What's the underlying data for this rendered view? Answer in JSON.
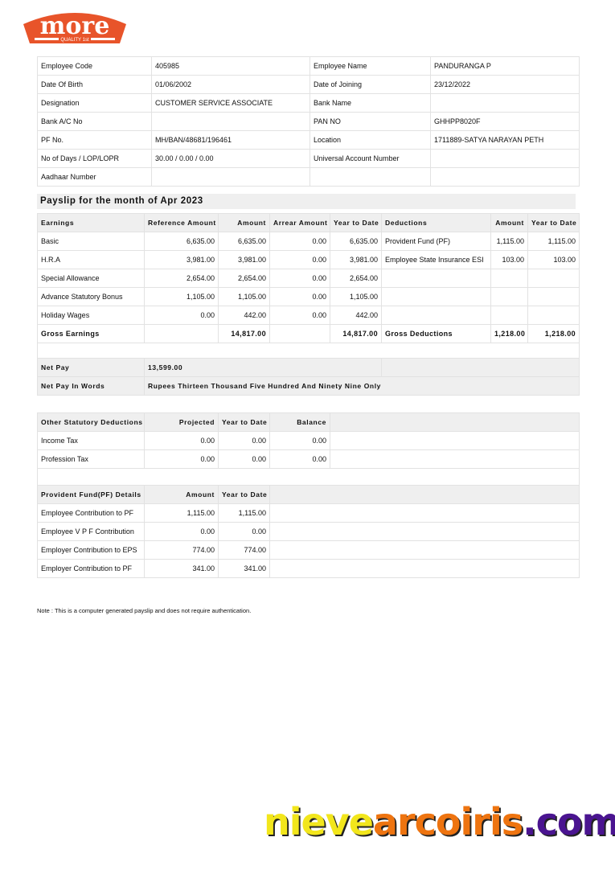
{
  "logo": {
    "text": "more",
    "tagline": "QUALITY 1st",
    "color": "#e8542a"
  },
  "info": [
    [
      "Employee Code",
      "405985",
      "Employee Name",
      "PANDURANGA P"
    ],
    [
      "Date Of Birth",
      "01/06/2002",
      "Date of Joining",
      "23/12/2022"
    ],
    [
      "Designation",
      "CUSTOMER SERVICE ASSOCIATE",
      "Bank Name",
      ""
    ],
    [
      "Bank A/C No",
      "",
      "PAN NO",
      "GHHPP8020F"
    ],
    [
      "PF No.",
      "MH/BAN/48681/196461",
      "Location",
      "1711889-SATYA NARAYAN PETH"
    ],
    [
      "No of Days / LOP/LOPR",
      "30.00 / 0.00 / 0.00",
      "Universal Account Number",
      ""
    ],
    [
      "Aadhaar Number",
      "",
      "",
      ""
    ]
  ],
  "payslip_title": "Payslip for the month of Apr 2023",
  "earnings": {
    "headers": [
      "Earnings",
      "Reference Amount",
      "Amount",
      "Arrear Amount",
      "Year to Date",
      "Deductions",
      "Amount",
      "Year to Date"
    ],
    "rows": [
      [
        "Basic",
        "6,635.00",
        "6,635.00",
        "0.00",
        "6,635.00",
        "Provident Fund (PF)",
        "1,115.00",
        "1,115.00"
      ],
      [
        "H.R.A",
        "3,981.00",
        "3,981.00",
        "0.00",
        "3,981.00",
        "Employee State Insurance ESI",
        "103.00",
        "103.00"
      ],
      [
        "Special Allowance",
        "2,654.00",
        "2,654.00",
        "0.00",
        "2,654.00",
        "",
        "",
        ""
      ],
      [
        "Advance Statutory Bonus",
        "1,105.00",
        "1,105.00",
        "0.00",
        "1,105.00",
        "",
        "",
        ""
      ],
      [
        "Holiday Wages",
        "0.00",
        "442.00",
        "0.00",
        "442.00",
        "",
        "",
        ""
      ]
    ],
    "totals": [
      "Gross Earnings",
      "",
      "14,817.00",
      "",
      "14,817.00",
      "Gross Deductions",
      "1,218.00",
      "1,218.00"
    ]
  },
  "net_pay": {
    "label": "Net Pay",
    "value": "13,599.00",
    "words_label": "Net Pay In Words",
    "words": "Rupees Thirteen Thousand Five Hundred And Ninety Nine Only"
  },
  "statutory": {
    "headers": [
      "Other Statutory Deductions",
      "Projected",
      "Year to Date",
      "Balance"
    ],
    "rows": [
      [
        "Income Tax",
        "0.00",
        "0.00",
        "0.00"
      ],
      [
        "Profession Tax",
        "0.00",
        "0.00",
        "0.00"
      ]
    ]
  },
  "pf": {
    "headers": [
      "Provident Fund(PF) Details",
      "Amount",
      "Year to Date"
    ],
    "rows": [
      [
        "Employee Contribution to PF",
        "1,115.00",
        "1,115.00"
      ],
      [
        "Employee V P F Contribution",
        "0.00",
        "0.00"
      ],
      [
        "Employer Contribution to EPS",
        "774.00",
        "774.00"
      ],
      [
        "Employer Contribution to PF",
        "341.00",
        "341.00"
      ]
    ]
  },
  "note": "Note : This is a computer generated payslip and does not require authentication.",
  "watermark": {
    "parts": [
      "nieve",
      "arcoiris",
      ".com"
    ],
    "colors": [
      "#f2e61c",
      "#ee7410",
      "#4a1490"
    ]
  }
}
